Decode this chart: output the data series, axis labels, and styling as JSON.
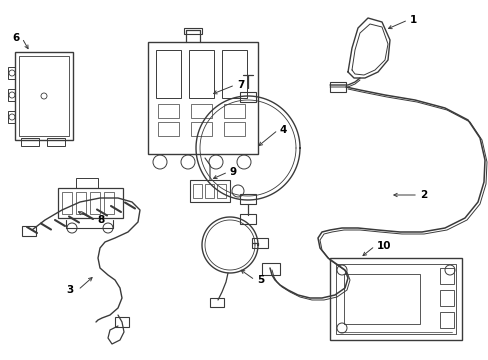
{
  "bg": "#ffffff",
  "lc": "#3a3a3a",
  "lw": 0.8,
  "figsize": [
    4.89,
    3.6
  ],
  "dpi": 100,
  "xlim": [
    0,
    489
  ],
  "ylim": [
    0,
    360
  ]
}
